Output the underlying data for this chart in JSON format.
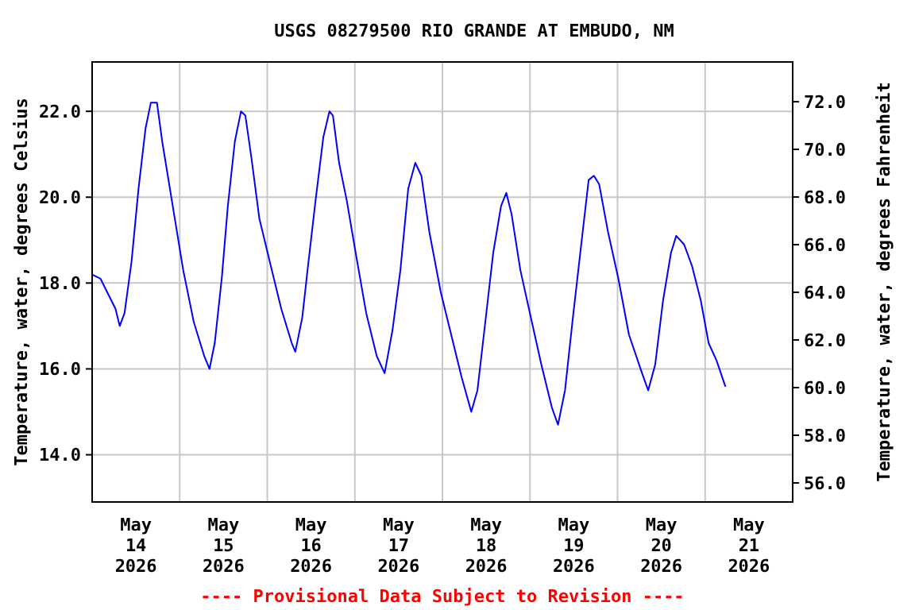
{
  "chart_data": {
    "type": "line",
    "title": "USGS 08279500 RIO GRANDE AT EMBUDO, NM",
    "ylabel": "Temperature, water, degrees Celsius",
    "y2label": "Temperature, water, degrees Fahrenheit",
    "annotations": [
      "---- Provisional Data Subject to Revision ----"
    ],
    "x": [
      "2026-05-14T00:00",
      "2026-05-14T02:18",
      "2026-05-14T06:24",
      "2026-05-14T07:34",
      "2026-05-14T08:53",
      "2026-05-14T10:48",
      "2026-05-14T12:43",
      "2026-05-14T14:38",
      "2026-05-14T16:05",
      "2026-05-14T17:46",
      "2026-05-14T19:12",
      "2026-05-14T22:05",
      "2026-05-15T00:58",
      "2026-05-15T03:50",
      "2026-05-15T06:43",
      "2026-05-15T08:10",
      "2026-05-15T09:36",
      "2026-05-15T11:31",
      "2026-05-15T13:12",
      "2026-05-15T15:07",
      "2026-05-15T16:48",
      "2026-05-15T18:00",
      "2026-05-15T19:41",
      "2026-05-15T21:50",
      "2026-05-16T00:58",
      "2026-05-16T03:50",
      "2026-05-16T06:43",
      "2026-05-16T07:41",
      "2026-05-16T09:36",
      "2026-05-16T11:02",
      "2026-05-16T13:12",
      "2026-05-16T15:22",
      "2026-05-16T17:02",
      "2026-05-16T18:00",
      "2026-05-16T19:41",
      "2026-05-16T21:50",
      "2026-05-17T00:14",
      "2026-05-17T03:07",
      "2026-05-17T06:00",
      "2026-05-17T08:10",
      "2026-05-17T10:19",
      "2026-05-17T12:29",
      "2026-05-17T14:38",
      "2026-05-17T16:34",
      "2026-05-17T18:14",
      "2026-05-17T20:24",
      "2026-05-17T23:31",
      "2026-05-18T02:24",
      "2026-05-18T05:17",
      "2026-05-18T07:55",
      "2026-05-18T09:36",
      "2026-05-18T11:46",
      "2026-05-18T13:55",
      "2026-05-18T16:05",
      "2026-05-18T17:31",
      "2026-05-18T18:58",
      "2026-05-18T21:22",
      "2026-05-19T00:14",
      "2026-05-19T03:07",
      "2026-05-19T06:00",
      "2026-05-19T07:41",
      "2026-05-19T09:36",
      "2026-05-19T11:46",
      "2026-05-19T13:55",
      "2026-05-19T16:05",
      "2026-05-19T17:31",
      "2026-05-19T18:58",
      "2026-05-19T21:22",
      "2026-05-20T00:14",
      "2026-05-20T03:07",
      "2026-05-20T06:43",
      "2026-05-20T08:24",
      "2026-05-20T10:19",
      "2026-05-20T12:29",
      "2026-05-20T14:38",
      "2026-05-20T16:05",
      "2026-05-20T18:14",
      "2026-05-20T20:24",
      "2026-05-20T22:48",
      "2026-05-21T00:58",
      "2026-05-21T03:07",
      "2026-05-21T05:31"
    ],
    "series": [
      {
        "color": "#0000ff",
        "values": [
          18.2,
          18.1,
          17.4,
          17.0,
          17.3,
          18.5,
          20.2,
          21.6,
          22.2,
          22.2,
          21.3,
          19.8,
          18.3,
          17.1,
          16.3,
          16.0,
          16.6,
          18.1,
          19.8,
          21.3,
          22.0,
          21.9,
          20.9,
          19.5,
          18.4,
          17.4,
          16.6,
          16.4,
          17.2,
          18.3,
          19.9,
          21.4,
          22.0,
          21.9,
          20.8,
          19.9,
          18.7,
          17.3,
          16.3,
          15.9,
          16.9,
          18.3,
          20.2,
          20.8,
          20.5,
          19.2,
          17.8,
          16.8,
          15.8,
          15.0,
          15.5,
          17.1,
          18.7,
          19.8,
          20.1,
          19.6,
          18.3,
          17.2,
          16.1,
          15.1,
          14.7,
          15.5,
          17.2,
          18.8,
          20.4,
          20.5,
          20.3,
          19.2,
          18.1,
          16.8,
          15.9,
          15.5,
          16.1,
          17.6,
          18.7,
          19.1,
          18.9,
          18.4,
          17.6,
          16.6,
          16.2,
          15.6
        ]
      }
    ],
    "xlim": [
      "2026-05-14T00:00",
      "2026-05-22T00:00"
    ],
    "xticks": [
      {
        "value": "2026-05-14T12:00",
        "label": "May\n14\n2026"
      },
      {
        "value": "2026-05-15T12:00",
        "label": "May\n15\n2026"
      },
      {
        "value": "2026-05-16T12:00",
        "label": "May\n16\n2026"
      },
      {
        "value": "2026-05-17T12:00",
        "label": "May\n17\n2026"
      },
      {
        "value": "2026-05-18T12:00",
        "label": "May\n18\n2026"
      },
      {
        "value": "2026-05-19T12:00",
        "label": "May\n19\n2026"
      },
      {
        "value": "2026-05-20T12:00",
        "label": "May\n20\n2026"
      },
      {
        "value": "2026-05-21T12:00",
        "label": "May\n21\n2026"
      },
      {
        "value": "2026-05-15T00:00",
        "label": null
      },
      {
        "value": "2026-05-16T00:00",
        "label": null
      },
      {
        "value": "2026-05-17T00:00",
        "label": null
      },
      {
        "value": "2026-05-18T00:00",
        "label": null
      },
      {
        "value": "2026-05-19T00:00",
        "label": null
      },
      {
        "value": "2026-05-20T00:00",
        "label": null
      },
      {
        "value": "2026-05-21T00:00",
        "label": null
      }
    ],
    "ylim": [
      12.9,
      23.15
    ],
    "yticks": [
      {
        "value": 14,
        "label": "14.0"
      },
      {
        "value": 16,
        "label": "16.0"
      },
      {
        "value": 18,
        "label": "18.0"
      },
      {
        "value": 20,
        "label": "20.0"
      },
      {
        "value": 22,
        "label": "22.0"
      }
    ],
    "y2lim": [
      55.2,
      73.67
    ],
    "y2ticks": [
      {
        "value": 56,
        "label": "56.0"
      },
      {
        "value": 58,
        "label": "58.0"
      },
      {
        "value": 60,
        "label": "60.0"
      },
      {
        "value": 62,
        "label": "62.0"
      },
      {
        "value": 64,
        "label": "64.0"
      },
      {
        "value": 66,
        "label": "66.0"
      },
      {
        "value": 68,
        "label": "68.0"
      },
      {
        "value": 70,
        "label": "70.0"
      },
      {
        "value": 72,
        "label": "72.0"
      }
    ],
    "grid": true,
    "marker": "none",
    "line_style": "solid"
  }
}
